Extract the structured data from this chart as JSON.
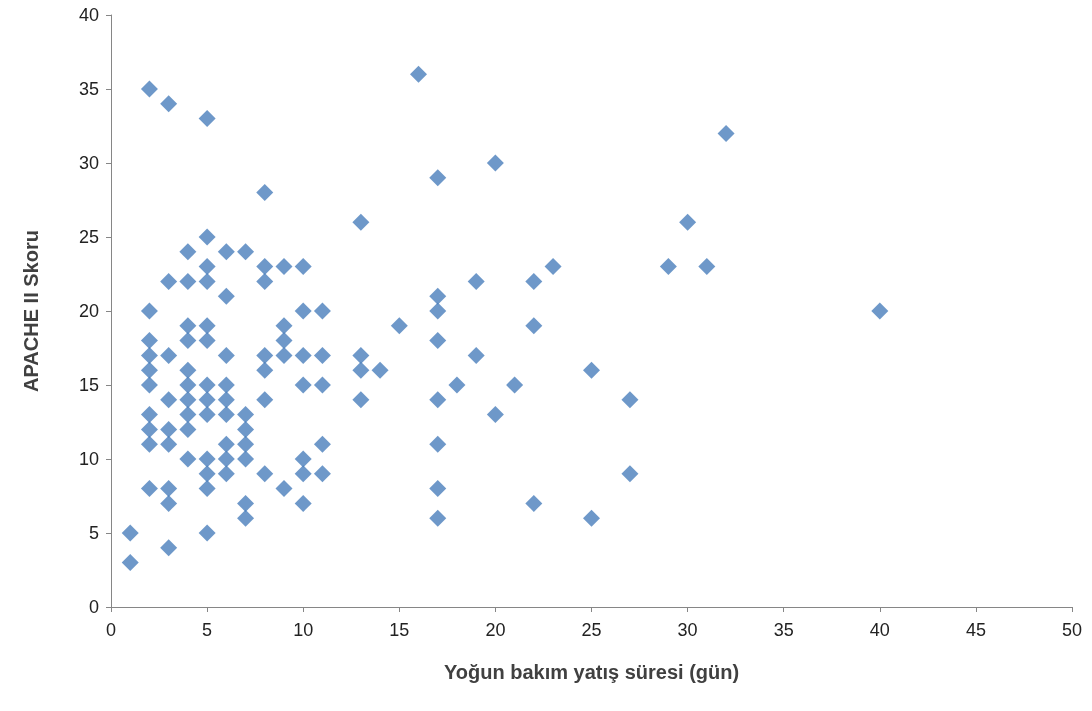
{
  "chart_data": {
    "type": "scatter",
    "xlabel": "Yoğun bakım yatış süresi (gün)",
    "ylabel": "APACHE II Skoru",
    "xlim": [
      0,
      50
    ],
    "xticks": [
      0,
      5,
      10,
      15,
      20,
      25,
      30,
      35,
      40,
      45,
      50
    ],
    "ylim": [
      0,
      40
    ],
    "yticks": [
      0,
      5,
      10,
      15,
      20,
      25,
      30,
      35,
      40
    ],
    "grid": false,
    "marker": "diamond",
    "series": [
      {
        "color": "#4a7ebb",
        "x": [
          1,
          1,
          2,
          2,
          2,
          2,
          2,
          2,
          2,
          2,
          2,
          2,
          3,
          3,
          3,
          3,
          3,
          3,
          3,
          3,
          3,
          4,
          4,
          4,
          4,
          4,
          4,
          4,
          4,
          4,
          4,
          5,
          5,
          5,
          5,
          5,
          5,
          5,
          5,
          5,
          5,
          5,
          5,
          5,
          6,
          6,
          6,
          6,
          6,
          6,
          6,
          6,
          6,
          7,
          7,
          7,
          7,
          7,
          7,
          7,
          8,
          8,
          8,
          8,
          8,
          8,
          8,
          9,
          9,
          9,
          9,
          9,
          10,
          10,
          10,
          10,
          10,
          10,
          10,
          11,
          11,
          11,
          11,
          11,
          13,
          13,
          13,
          13,
          14,
          15,
          16,
          17,
          17,
          17,
          17,
          17,
          17,
          17,
          17,
          18,
          19,
          19,
          20,
          20,
          21,
          22,
          22,
          22,
          23,
          25,
          25,
          27,
          27,
          29,
          30,
          31,
          32,
          40
        ],
        "values": [
          5,
          3,
          35,
          20,
          18,
          17,
          16,
          15,
          13,
          12,
          11,
          8,
          34,
          22,
          17,
          14,
          12,
          11,
          8,
          7,
          4,
          24,
          22,
          19,
          18,
          16,
          15,
          14,
          13,
          12,
          10,
          33,
          25,
          23,
          22,
          19,
          18,
          15,
          14,
          13,
          10,
          9,
          8,
          5,
          24,
          21,
          17,
          15,
          14,
          13,
          11,
          10,
          9,
          24,
          13,
          12,
          11,
          10,
          7,
          6,
          28,
          23,
          22,
          17,
          16,
          14,
          9,
          23,
          19,
          18,
          17,
          8,
          23,
          20,
          17,
          15,
          10,
          9,
          7,
          20,
          17,
          15,
          11,
          9,
          26,
          17,
          16,
          14,
          16,
          19,
          36,
          29,
          21,
          20,
          18,
          14,
          11,
          8,
          6,
          15,
          22,
          17,
          30,
          13,
          15,
          22,
          19,
          7,
          23,
          16,
          6,
          14,
          9,
          23,
          26,
          23,
          32,
          20
        ]
      }
    ]
  }
}
